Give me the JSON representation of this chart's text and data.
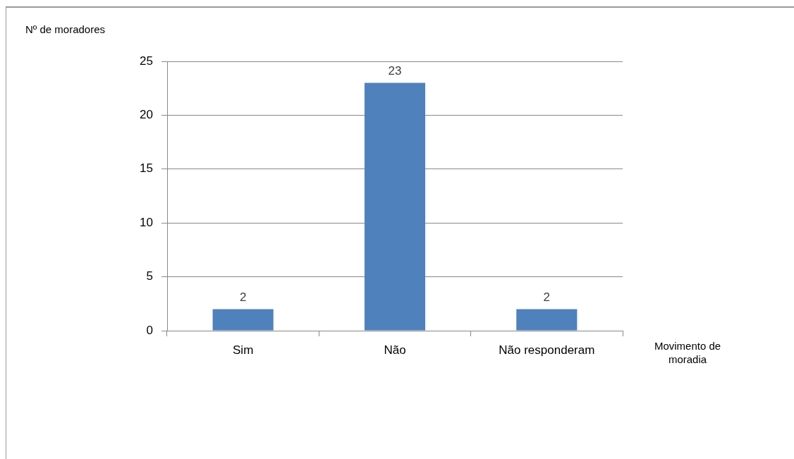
{
  "chart_data": {
    "type": "bar",
    "xlabel": "Movimento de moradia",
    "ylabel": "Nº de moradores",
    "categories": [
      "Sim",
      "Não",
      "Não responderam"
    ],
    "values": [
      2,
      23,
      2
    ],
    "color": "#4f81bd",
    "ylim": [
      0,
      25
    ],
    "yticks": [
      0,
      5,
      10,
      15,
      20,
      25
    ],
    "grid": "y",
    "data_labels": true
  }
}
